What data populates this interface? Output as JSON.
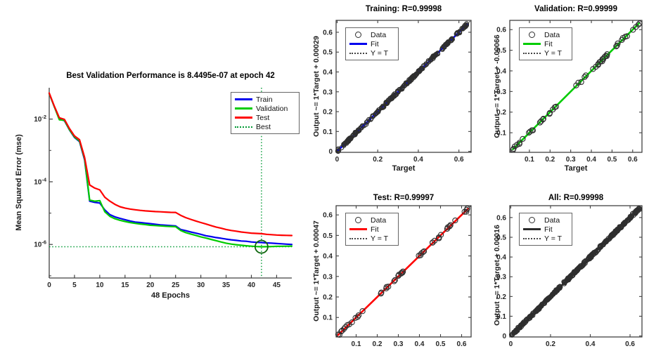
{
  "figure": {
    "background": "#ffffff"
  },
  "colors": {
    "train_blue": "#0000EE",
    "validation_green": "#00CC00",
    "test_red": "#FF0000",
    "best_dotted_green": "#009933",
    "best_circle_green": "#0D660D",
    "all_fit_dark": "#2B2B2B",
    "data_marker": "#2E2E2E",
    "axis": "#404040",
    "tick_text": "#262626"
  },
  "chart_data": [
    {
      "id": "performance",
      "type": "line",
      "title": "Best Validation Performance is 8.4495e-07 at epoch 42",
      "xlabel": "48 Epochs",
      "ylabel": "Mean Squared Error  (mse)",
      "xlim": [
        0,
        48
      ],
      "xticks": [
        0,
        5,
        10,
        15,
        20,
        25,
        30,
        35,
        40,
        45
      ],
      "ylog": true,
      "ylim_exp": [
        -1,
        -7.07
      ],
      "ytick_exponents": [
        -2,
        -4,
        -6
      ],
      "yminor_exponents": [
        -3,
        -5,
        -7
      ],
      "grid": false,
      "legend_position": "upper right",
      "best": {
        "epoch": 42,
        "value": 8.4495e-07
      },
      "legend": [
        {
          "label": "Train",
          "swatch": "line",
          "color": "#0000EE"
        },
        {
          "label": "Validation",
          "swatch": "line",
          "color": "#00CC00"
        },
        {
          "label": "Test",
          "swatch": "line",
          "color": "#FF0000"
        },
        {
          "label": "Best",
          "swatch": "dotted",
          "color": "#009933"
        }
      ],
      "series": [
        {
          "name": "Train",
          "color": "#0000EE",
          "values": [
            0.066,
            0.025,
            0.01,
            0.0089,
            0.0045,
            0.0026,
            0.0019,
            0.0005,
            2.4e-05,
            2.2e-05,
            2.1e-05,
            1.26e-05,
            8.9e-06,
            7.6e-06,
            6.8e-06,
            6.2e-06,
            5.6e-06,
            5.2e-06,
            5e-06,
            4.8e-06,
            4.6e-06,
            4.4e-06,
            4.2e-06,
            4.1e-06,
            4e-06,
            3.9e-06,
            3e-06,
            2.75e-06,
            2.5e-06,
            2.3e-06,
            2.1e-06,
            1.9e-06,
            1.78e-06,
            1.66e-06,
            1.58e-06,
            1.48e-06,
            1.41e-06,
            1.35e-06,
            1.29e-06,
            1.26e-06,
            1.2e-06,
            1.17e-06,
            1.15e-06,
            1.12e-06,
            1.1e-06,
            1.07e-06,
            1.05e-06,
            1.02e-06,
            1e-06
          ]
        },
        {
          "name": "Validation",
          "color": "#00CC00",
          "values": [
            0.066,
            0.025,
            0.0095,
            0.0092,
            0.0046,
            0.0027,
            0.002,
            0.00055,
            2.6e-05,
            2.4e-05,
            2.5e-05,
            1.1e-05,
            7.9e-06,
            6.6e-06,
            5.9e-06,
            5.4e-06,
            5e-06,
            4.7e-06,
            4.5e-06,
            4.3e-06,
            4.1e-06,
            4e-06,
            3.9e-06,
            3.8e-06,
            3.75e-06,
            3.7e-06,
            2.8e-06,
            2.4e-06,
            2.15e-06,
            1.95e-06,
            1.75e-06,
            1.6e-06,
            1.45e-06,
            1.32e-06,
            1.2e-06,
            1.1e-06,
            1.03e-06,
            9.8e-07,
            9.4e-07,
            9.1e-07,
            8.8e-07,
            8.6e-07,
            8.4495e-07,
            8.5e-07,
            8.6e-07,
            8.7e-07,
            8.75e-07,
            8.8e-07,
            8.85e-07
          ]
        },
        {
          "name": "Test",
          "color": "#FF0000",
          "values": [
            0.068,
            0.026,
            0.011,
            0.0098,
            0.005,
            0.0029,
            0.0022,
            0.0006,
            7.9e-05,
            6.3e-05,
            5.5e-05,
            3.2e-05,
            2.4e-05,
            1.9e-05,
            1.6e-05,
            1.45e-05,
            1.35e-05,
            1.28e-05,
            1.22e-05,
            1.18e-05,
            1.15e-05,
            1.12e-05,
            1.1e-05,
            1.08e-05,
            1.06e-05,
            1.05e-05,
            8.5e-06,
            7.2e-06,
            6.3e-06,
            5.6e-06,
            5e-06,
            4.5e-06,
            4e-06,
            3.6e-06,
            3.3e-06,
            3e-06,
            2.8e-06,
            2.65e-06,
            2.5e-06,
            2.4e-06,
            2.3e-06,
            2.25e-06,
            2.2e-06,
            2.1e-06,
            2.05e-06,
            2e-06,
            1.97e-06,
            1.95e-06,
            1.93e-06
          ]
        }
      ]
    },
    {
      "id": "training",
      "type": "scatter",
      "title": "Training: R=0.99998",
      "r_value": "0.99998",
      "xlabel": "Target",
      "ylabel": "Output ~= 1*Target + 0.00029",
      "fit_color": "#0000EE",
      "lim": [
        -0.005,
        0.66
      ],
      "xticks": [
        0,
        0.2,
        0.4,
        0.6
      ],
      "yticks": [
        0,
        0.1,
        0.2,
        0.3,
        0.4,
        0.5,
        0.6
      ],
      "seed": 11,
      "points_dense": {
        "count": 240,
        "min": 0.003,
        "max": 0.642
      },
      "legend": [
        {
          "label": "Data",
          "swatch": "circle",
          "color": "#2E2E2E"
        },
        {
          "label": "Fit",
          "swatch": "line",
          "color": "#0000EE"
        },
        {
          "label": "Y = T",
          "swatch": "dotted",
          "color": "#444444"
        }
      ]
    },
    {
      "id": "validation",
      "type": "scatter",
      "title": "Validation: R=0.99999",
      "r_value": "0.99999",
      "xlabel": "Target",
      "ylabel": "Output ~= 1*Target + -0.00066",
      "fit_color": "#00CC00",
      "lim": [
        0.005,
        0.645
      ],
      "xticks": [
        0.1,
        0.2,
        0.3,
        0.4,
        0.5,
        0.6
      ],
      "yticks": [
        0.1,
        0.2,
        0.3,
        0.4,
        0.5,
        0.6
      ],
      "seed": 22,
      "points": [
        0.02,
        0.025,
        0.03,
        0.04,
        0.05,
        0.055,
        0.07,
        0.1,
        0.105,
        0.11,
        0.115,
        0.15,
        0.16,
        0.165,
        0.17,
        0.195,
        0.2,
        0.215,
        0.225,
        0.23,
        0.33,
        0.34,
        0.35,
        0.37,
        0.375,
        0.41,
        0.42,
        0.43,
        0.435,
        0.44,
        0.445,
        0.45,
        0.455,
        0.46,
        0.465,
        0.47,
        0.475,
        0.48,
        0.52,
        0.525,
        0.53,
        0.55,
        0.555,
        0.565,
        0.57,
        0.6,
        0.615,
        0.625,
        0.63
      ],
      "legend": [
        {
          "label": "Data",
          "swatch": "circle",
          "color": "#2E2E2E"
        },
        {
          "label": "Fit",
          "swatch": "line",
          "color": "#00CC00"
        },
        {
          "label": "Y = T",
          "swatch": "dotted",
          "color": "#444444"
        }
      ]
    },
    {
      "id": "test",
      "type": "scatter",
      "title": "Test: R=0.99997",
      "r_value": "0.99997",
      "xlabel": "",
      "ylabel": "Output ~= 1*Target + 0.00047",
      "fit_color": "#FF0000",
      "lim": [
        0.005,
        0.645
      ],
      "xticks": [
        0.1,
        0.2,
        0.3,
        0.4,
        0.5,
        0.6
      ],
      "yticks": [
        0.1,
        0.2,
        0.3,
        0.4,
        0.5,
        0.6
      ],
      "seed": 33,
      "points": [
        0.015,
        0.02,
        0.03,
        0.035,
        0.04,
        0.05,
        0.06,
        0.065,
        0.08,
        0.1,
        0.105,
        0.11,
        0.13,
        0.215,
        0.22,
        0.24,
        0.245,
        0.25,
        0.28,
        0.285,
        0.3,
        0.305,
        0.31,
        0.315,
        0.32,
        0.325,
        0.4,
        0.405,
        0.41,
        0.415,
        0.42,
        0.46,
        0.465,
        0.47,
        0.49,
        0.495,
        0.5,
        0.53,
        0.535,
        0.54,
        0.545,
        0.55,
        0.57,
        0.615,
        0.62,
        0.625,
        0.63
      ],
      "legend": [
        {
          "label": "Data",
          "swatch": "circle",
          "color": "#2E2E2E"
        },
        {
          "label": "Fit",
          "swatch": "line",
          "color": "#FF0000"
        },
        {
          "label": "Y = T",
          "swatch": "dotted",
          "color": "#444444"
        }
      ]
    },
    {
      "id": "all",
      "type": "scatter",
      "title": "All: R=0.99998",
      "r_value": "0.99998",
      "xlabel": "",
      "ylabel": "Output ~= 1*Target + 0.00016",
      "fit_color": "#2B2B2B",
      "lim": [
        -0.005,
        0.66
      ],
      "xticks": [
        0,
        0.2,
        0.4,
        0.6
      ],
      "yticks": [
        0,
        0.1,
        0.2,
        0.3,
        0.4,
        0.5,
        0.6
      ],
      "seed": 44,
      "points_dense": {
        "count": 380,
        "min": 0.003,
        "max": 0.646
      },
      "legend": [
        {
          "label": "Data",
          "swatch": "circle",
          "color": "#2E2E2E"
        },
        {
          "label": "Fit",
          "swatch": "line",
          "color": "#2B2B2B"
        },
        {
          "label": "Y = T",
          "swatch": "dotted",
          "color": "#444444"
        }
      ]
    }
  ]
}
